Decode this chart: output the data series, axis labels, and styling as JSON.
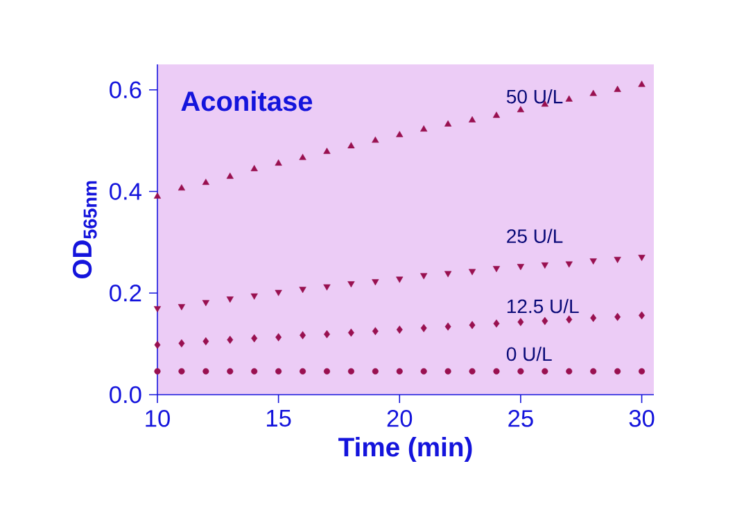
{
  "chart_data": {
    "type": "scatter",
    "title": "Aconitase",
    "xlabel": "Time (min)",
    "ylabel": "OD$_{565nm}$",
    "x": [
      10,
      11,
      12,
      13,
      14,
      15,
      16,
      17,
      18,
      19,
      20,
      21,
      22,
      23,
      24,
      25,
      26,
      27,
      28,
      29,
      30
    ],
    "xlim": [
      10,
      30.5
    ],
    "ylim": [
      0,
      0.65
    ],
    "xticks": [
      10,
      15,
      20,
      25,
      30
    ],
    "yticks": [
      {
        "value": 0,
        "label": "0.0"
      },
      {
        "value": 0.2,
        "label": "0.2"
      },
      {
        "value": 0.4,
        "label": "0.4"
      },
      {
        "value": 0.6,
        "label": "0.6"
      }
    ],
    "series": [
      {
        "name": "50 U/L",
        "color": "#991050",
        "marker": "triangle",
        "values": [
          0.39,
          0.406,
          0.417,
          0.429,
          0.444,
          0.455,
          0.466,
          0.478,
          0.489,
          0.5,
          0.511,
          0.522,
          0.532,
          0.54,
          0.549,
          0.56,
          0.571,
          0.581,
          0.592,
          0.6,
          0.61
        ]
      },
      {
        "name": "25 U/L",
        "color": "#991050",
        "marker": "triangle-down",
        "values": [
          0.17,
          0.174,
          0.182,
          0.189,
          0.195,
          0.202,
          0.208,
          0.213,
          0.219,
          0.223,
          0.228,
          0.235,
          0.239,
          0.243,
          0.249,
          0.253,
          0.256,
          0.258,
          0.264,
          0.267,
          0.271
        ]
      },
      {
        "name": "12.5 U/L",
        "color": "#991050",
        "marker": "diamond",
        "values": [
          0.098,
          0.101,
          0.105,
          0.108,
          0.111,
          0.113,
          0.117,
          0.119,
          0.122,
          0.125,
          0.128,
          0.131,
          0.134,
          0.137,
          0.14,
          0.143,
          0.145,
          0.148,
          0.151,
          0.153,
          0.156
        ]
      },
      {
        "name": "0 U/L",
        "color": "#991050",
        "marker": "circle",
        "values": [
          0.046,
          0.046,
          0.046,
          0.046,
          0.046,
          0.046,
          0.046,
          0.046,
          0.046,
          0.046,
          0.046,
          0.046,
          0.046,
          0.046,
          0.046,
          0.046,
          0.046,
          0.046,
          0.046,
          0.046,
          0.046
        ]
      }
    ]
  }
}
